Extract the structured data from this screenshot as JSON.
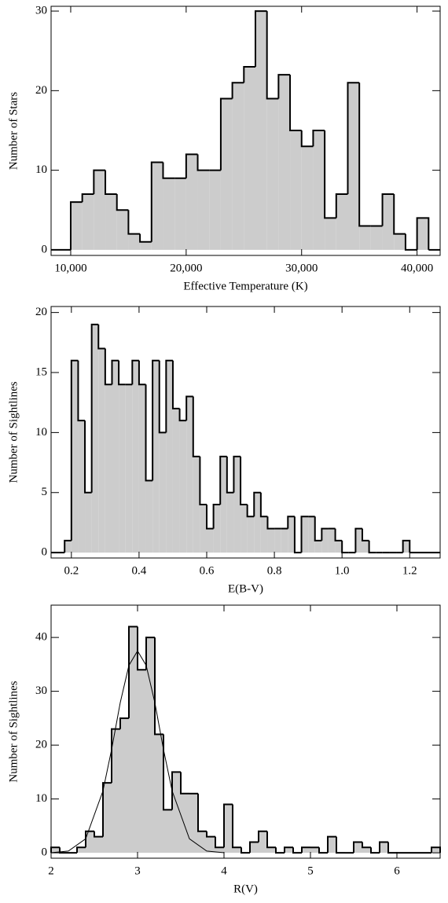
{
  "chart_data": [
    {
      "type": "histogram",
      "xlabel": "Effective Temperature (K)",
      "ylabel": "Number of Stars",
      "bins": [
        10000,
        11000,
        12000,
        13000,
        14000,
        15000,
        16000,
        17000,
        18000,
        19000,
        20000,
        21000,
        22000,
        23000,
        24000,
        25000,
        26000,
        27000,
        28000,
        29000,
        30000,
        31000,
        32000,
        33000,
        34000,
        35000,
        36000,
        37000,
        38000,
        39000,
        40000,
        41000
      ],
      "values": [
        6,
        7,
        10,
        7,
        5,
        2,
        1,
        11,
        9,
        9,
        12,
        10,
        10,
        19,
        21,
        23,
        30,
        19,
        22,
        15,
        13,
        15,
        4,
        7,
        21,
        3,
        3,
        7,
        2,
        0,
        4
      ],
      "color": "#cccccc",
      "xlim": [
        8300,
        42000
      ],
      "ylim": [
        -0.7,
        30.6
      ],
      "xticks": [
        {
          "value": 10000,
          "label": "10,000"
        },
        {
          "value": 20000,
          "label": "20,000"
        },
        {
          "value": 30000,
          "label": "30,000"
        },
        {
          "value": 40000,
          "label": "40,000"
        }
      ],
      "yticks": [
        0,
        10,
        20,
        30
      ]
    },
    {
      "type": "histogram",
      "xlabel": "E(B-V)",
      "ylabel": "Number of Sightlines",
      "bins": [
        0.18,
        0.2,
        0.22,
        0.24,
        0.26,
        0.28,
        0.3,
        0.32,
        0.34,
        0.36,
        0.38,
        0.4,
        0.42,
        0.44,
        0.46,
        0.48,
        0.5,
        0.52,
        0.54,
        0.56,
        0.58,
        0.6,
        0.62,
        0.64,
        0.66,
        0.68,
        0.7,
        0.72,
        0.74,
        0.76,
        0.78,
        0.8,
        0.82,
        0.84,
        0.86,
        0.88,
        0.9,
        0.92,
        0.94,
        0.96,
        0.98,
        1,
        1.02,
        1.04,
        1.06,
        1.08,
        1.1,
        1.12,
        1.14,
        1.16,
        1.18,
        1.2
      ],
      "values": [
        1,
        16,
        11,
        5,
        19,
        17,
        14,
        16,
        14,
        14,
        16,
        14,
        6,
        16,
        10,
        16,
        12,
        11,
        13,
        8,
        4,
        2,
        4,
        8,
        5,
        8,
        4,
        3,
        5,
        3,
        2,
        2,
        2,
        3,
        0,
        3,
        3,
        1,
        2,
        2,
        1,
        0,
        0,
        2,
        1,
        0,
        0,
        0,
        0,
        0,
        1
      ],
      "color": "#cccccc",
      "xlim": [
        0.14,
        1.29
      ],
      "ylim": [
        -0.45,
        20.5
      ],
      "xticks": [
        0.2,
        0.4,
        0.6,
        0.8,
        {
          "value": 1,
          "label": "1.0"
        },
        1.2
      ],
      "yticks": [
        0,
        5,
        10,
        15,
        20
      ]
    },
    {
      "type": "histogram",
      "xlabel": "R(V)",
      "ylabel": "Number of Sightlines",
      "bins": [
        2,
        2.1,
        2.2,
        2.3,
        2.4,
        2.5,
        2.6,
        2.7,
        2.8,
        2.9,
        3,
        3.1,
        3.2,
        3.3,
        3.4,
        3.5,
        3.6,
        3.7,
        3.8,
        3.9,
        4,
        4.1,
        4.2,
        4.3,
        4.4,
        4.5,
        4.6,
        4.7,
        4.8,
        4.9,
        5,
        5.1,
        5.2,
        5.3,
        5.4,
        5.5,
        5.6,
        5.7,
        5.8,
        5.9,
        6,
        6.1,
        6.2,
        6.3,
        6.4,
        6.5
      ],
      "values": [
        1,
        0,
        0,
        1,
        4,
        3,
        13,
        23,
        25,
        42,
        34,
        40,
        22,
        8,
        15,
        11,
        11,
        4,
        3,
        1,
        9,
        1,
        0,
        2,
        4,
        1,
        0,
        1,
        0,
        1,
        1,
        0,
        3,
        0,
        0,
        2,
        1,
        0,
        2,
        0,
        0,
        0,
        0,
        0,
        1
      ],
      "color": "#cccccc",
      "curve": {
        "x": [
          2,
          2.2,
          2.4,
          2.6,
          2.7,
          2.8,
          2.9,
          3,
          3.1,
          3.2,
          3.3,
          3.4,
          3.6,
          3.8,
          4
        ],
        "values": [
          0.02,
          0.33,
          2.6,
          11.5,
          19.2,
          27.9,
          34.8,
          37.5,
          34.8,
          27.9,
          19.2,
          11.5,
          2.6,
          0.33,
          0.02
        ],
        "color": "#000000"
      },
      "xlim": [
        2,
        6.5
      ],
      "ylim": [
        -1,
        46
      ],
      "xticks": [
        2,
        3,
        4,
        5,
        6
      ],
      "yticks": [
        0,
        10,
        20,
        30,
        40
      ]
    }
  ]
}
